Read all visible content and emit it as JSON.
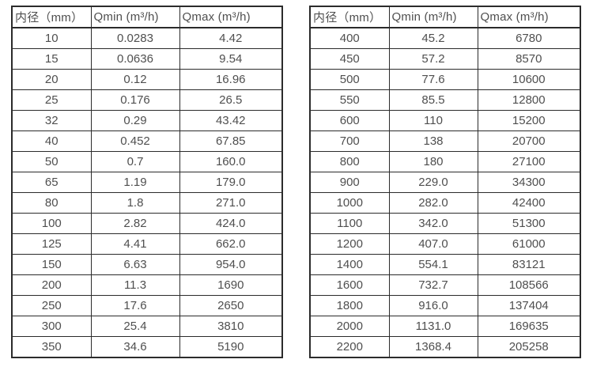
{
  "colors": {
    "background": "#ffffff",
    "border": "#2b2b2b",
    "text": "#4f4f4f"
  },
  "tables": [
    {
      "name": "flow-rates-small-diameters",
      "headers": [
        "内径（mm）",
        "Qmin (m³/h)",
        "Qmax (m³/h)"
      ],
      "rows": [
        [
          "10",
          "0.0283",
          "4.42"
        ],
        [
          "15",
          "0.0636",
          "9.54"
        ],
        [
          "20",
          "0.12",
          "16.96"
        ],
        [
          "25",
          "0.176",
          "26.5"
        ],
        [
          "32",
          "0.29",
          "43.42"
        ],
        [
          "40",
          "0.452",
          "67.85"
        ],
        [
          "50",
          "0.7",
          "160.0"
        ],
        [
          "65",
          "1.19",
          "179.0"
        ],
        [
          "80",
          "1.8",
          "271.0"
        ],
        [
          "100",
          "2.82",
          "424.0"
        ],
        [
          "125",
          "4.41",
          "662.0"
        ],
        [
          "150",
          "6.63",
          "954.0"
        ],
        [
          "200",
          "11.3",
          "1690"
        ],
        [
          "250",
          "17.6",
          "2650"
        ],
        [
          "300",
          "25.4",
          "3810"
        ],
        [
          "350",
          "34.6",
          "5190"
        ]
      ]
    },
    {
      "name": "flow-rates-large-diameters",
      "headers": [
        "内径（mm）",
        "Qmin (m³/h)",
        "Qmax (m³/h)"
      ],
      "rows": [
        [
          "400",
          "45.2",
          "6780"
        ],
        [
          "450",
          "57.2",
          "8570"
        ],
        [
          "500",
          "77.6",
          "10600"
        ],
        [
          "550",
          "85.5",
          "12800"
        ],
        [
          "600",
          "110",
          "15200"
        ],
        [
          "700",
          "138",
          "20700"
        ],
        [
          "800",
          "180",
          "27100"
        ],
        [
          "900",
          "229.0",
          "34300"
        ],
        [
          "1000",
          "282.0",
          "42400"
        ],
        [
          "1100",
          "342.0",
          "51300"
        ],
        [
          "1200",
          "407.0",
          "61000"
        ],
        [
          "1400",
          "554.1",
          "83121"
        ],
        [
          "1600",
          "732.7",
          "108566"
        ],
        [
          "1800",
          "916.0",
          "137404"
        ],
        [
          "2000",
          "1131.0",
          "169635"
        ],
        [
          "2200",
          "1368.4",
          "205258"
        ]
      ]
    }
  ]
}
